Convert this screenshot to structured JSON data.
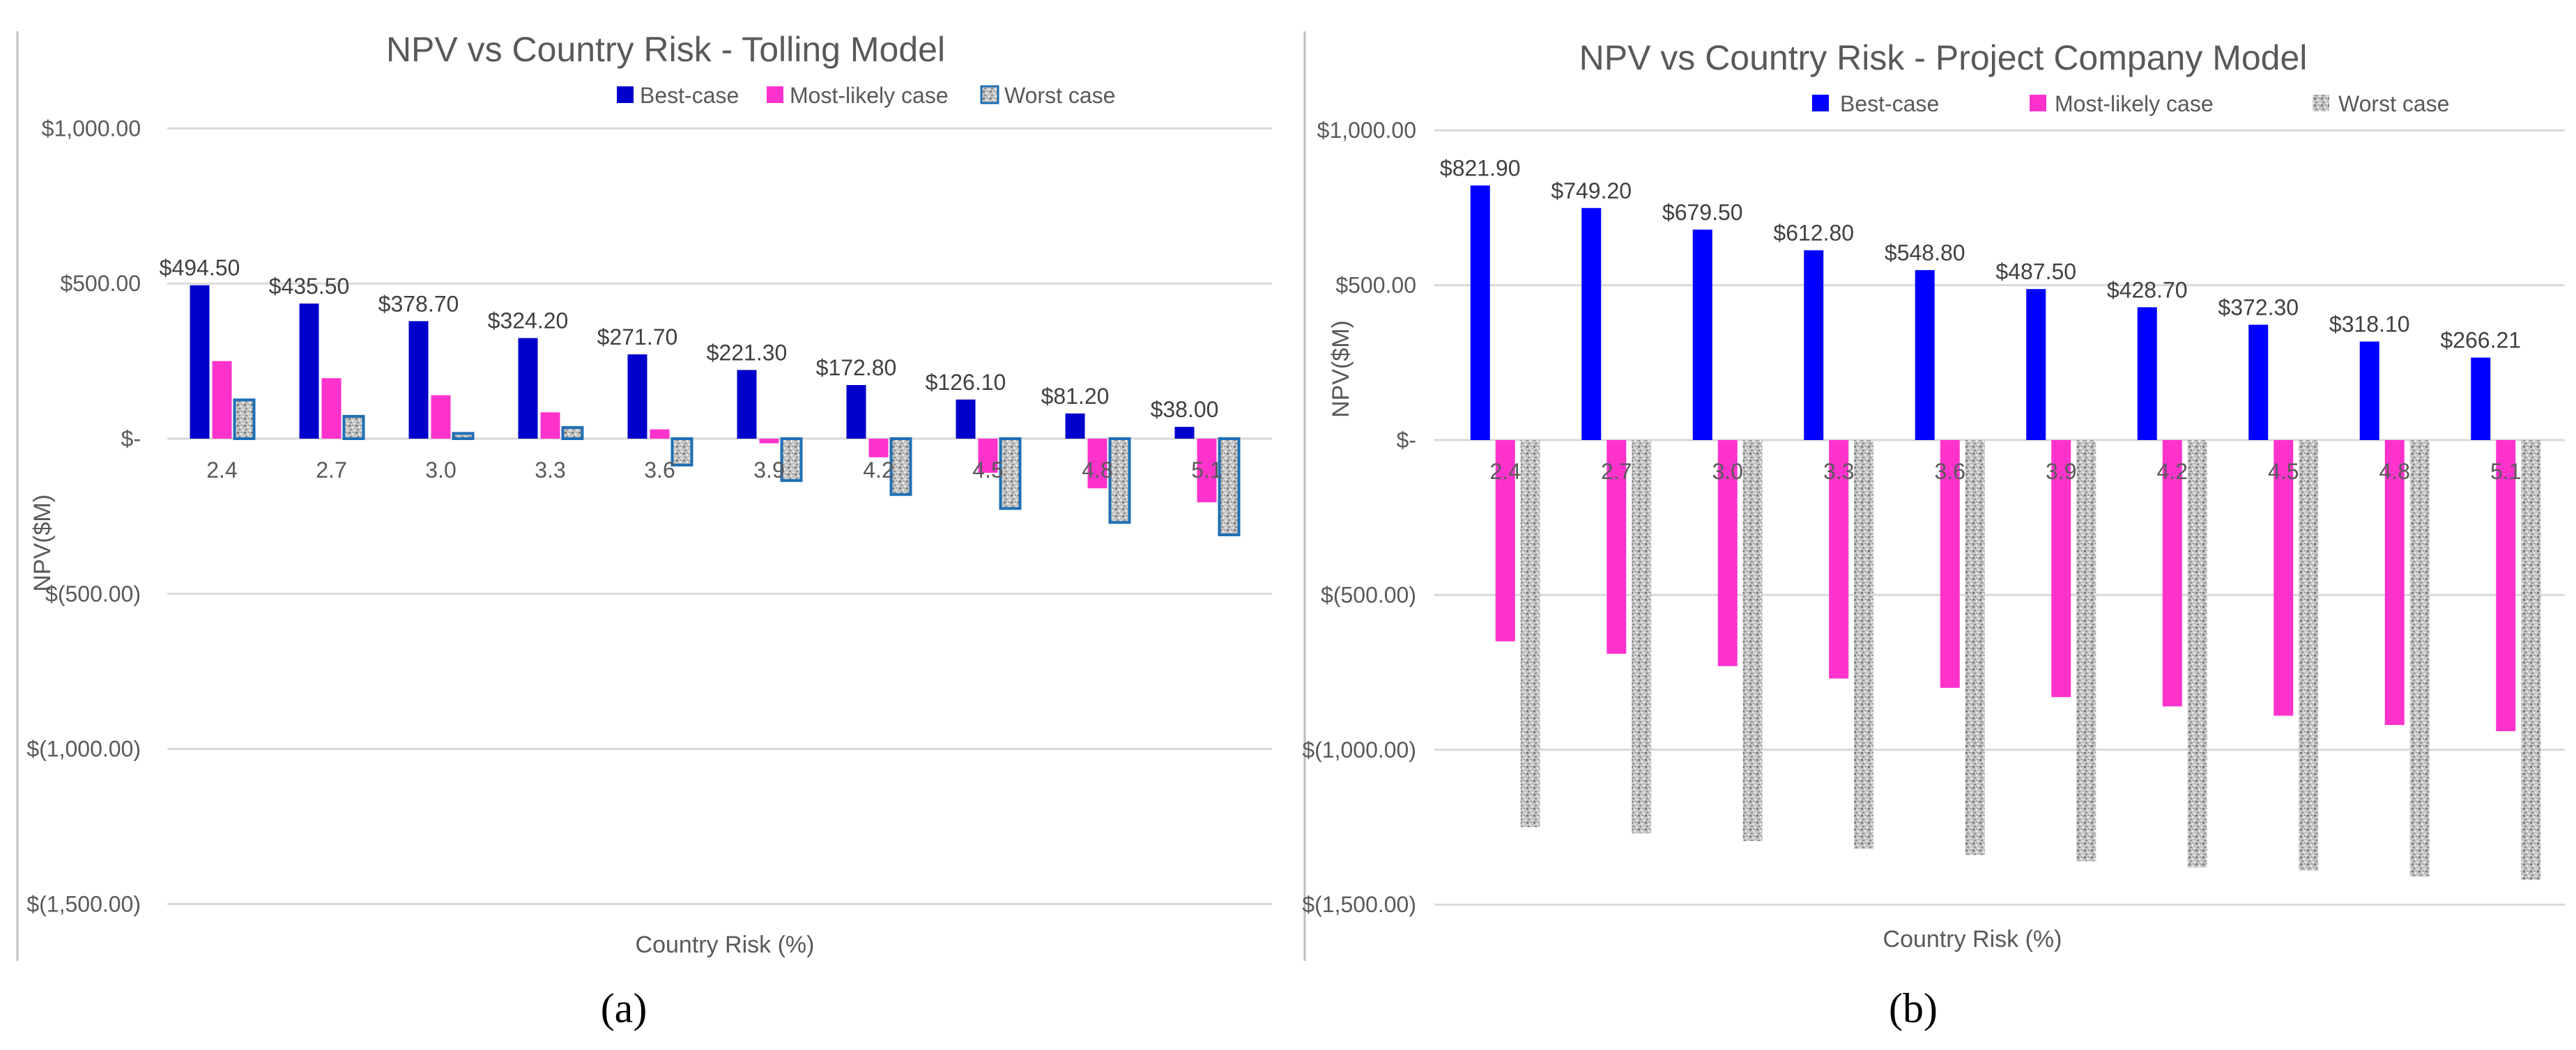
{
  "colors": {
    "best": "#0000CC",
    "best_b": "#0000FF",
    "most": "#FF33CC",
    "worst_fill": "#bcbcbc",
    "worst_border": "#1f6fb5",
    "grid": "#d9d9d9",
    "text": "#595959"
  },
  "chart_data": [
    {
      "type": "bar",
      "panel_label": "(a)",
      "title": "NPV vs Country Risk - Tolling Model",
      "xlabel": "Country Risk (%)",
      "ylabel": "NPV($M)",
      "categories": [
        "2.4",
        "2.7",
        "3.0",
        "3.3",
        "3.6",
        "3.9",
        "4.2",
        "4.5",
        "4.8",
        "5.1"
      ],
      "ylim": [
        -1500,
        1000
      ],
      "yticks": [
        1000,
        500,
        0,
        -500,
        -1000,
        -1500
      ],
      "ytick_labels": [
        "$1,000.00",
        "$500.00",
        "$-",
        "$(500.00)",
        "$(1,000.00)",
        "$(1,500.00)"
      ],
      "grid": true,
      "legend_position": "top",
      "series": [
        {
          "name": "Best-case",
          "values": [
            494.5,
            435.5,
            378.7,
            324.2,
            271.7,
            221.3,
            172.8,
            126.1,
            81.2,
            38.0
          ],
          "labels": [
            "$494.50",
            "$435.50",
            "$378.70",
            "$324.20",
            "$271.70",
            "$221.30",
            "$172.80",
            "$126.10",
            "$81.20",
            "$38.00"
          ]
        },
        {
          "name": "Most-likely case",
          "values": [
            250,
            195,
            140,
            85,
            30,
            -15,
            -60,
            -110,
            -160,
            -205
          ]
        },
        {
          "name": "Worst case",
          "values": [
            125,
            72,
            17,
            36,
            -85,
            -135,
            -180,
            -225,
            -270,
            -310
          ]
        }
      ]
    },
    {
      "type": "bar",
      "panel_label": "(b)",
      "title": "NPV vs Country Risk - Project Company  Model",
      "xlabel": "Country Risk (%)",
      "ylabel": "NPV($M)",
      "categories": [
        "2.4",
        "2.7",
        "3.0",
        "3.3",
        "3.6",
        "3.9",
        "4.2",
        "4.5",
        "4.8",
        "5.1"
      ],
      "ylim": [
        -1500,
        1000
      ],
      "yticks": [
        1000,
        500,
        0,
        -500,
        -1000,
        -1500
      ],
      "ytick_labels": [
        "$1,000.00",
        "$500.00",
        "$-",
        "$(500.00)",
        "$(1,000.00)",
        "$(1,500.00)"
      ],
      "grid": true,
      "legend_position": "top",
      "series": [
        {
          "name": "Best-case",
          "values": [
            821.9,
            749.2,
            679.5,
            612.8,
            548.8,
            487.5,
            428.7,
            372.3,
            318.1,
            266.21
          ],
          "labels": [
            "$821.90",
            "$749.20",
            "$679.50",
            "$612.80",
            "$548.80",
            "$487.50",
            "$428.70",
            "$372.30",
            "$318.10",
            "$266.21"
          ]
        },
        {
          "name": "Most-likely case",
          "values": [
            -650,
            -690,
            -730,
            -770,
            -800,
            -830,
            -860,
            -890,
            -920,
            -940
          ]
        },
        {
          "name": "Worst case",
          "values": [
            -1250,
            -1270,
            -1295,
            -1320,
            -1340,
            -1360,
            -1380,
            -1390,
            -1410,
            -1420
          ]
        }
      ]
    }
  ]
}
